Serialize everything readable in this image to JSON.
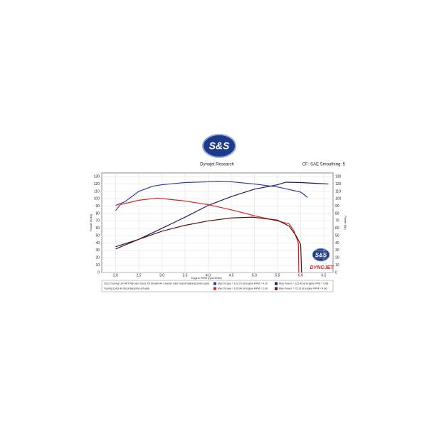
{
  "chart_data": {
    "type": "line",
    "title": "Dynojet Research",
    "subtitle": "CF: SAE Smoothing: 5",
    "logo": "S&S",
    "brand": "DYNOJET",
    "xlabel": "Engine RPM (rpm/1000)",
    "ylabel": "Torque (ft-lbs)",
    "y2label": "Power (hp)",
    "xlim": [
      1.7,
      6.7
    ],
    "xticks": [
      {
        "value": 2,
        "label": "2.0"
      },
      2.5,
      {
        "value": 3,
        "label": "3.0"
      },
      3.5,
      {
        "value": 4,
        "label": "4.0"
      },
      4.5,
      {
        "value": 5,
        "label": "5.0"
      },
      5.5,
      {
        "value": 6,
        "label": "6.0"
      },
      6.5
    ],
    "ylim": [
      0,
      135
    ],
    "yticks": [
      0,
      10,
      20,
      30,
      40,
      50,
      60,
      70,
      80,
      90,
      100,
      110,
      120,
      130
    ],
    "y2lim": [
      0,
      135
    ],
    "y2ticks": [
      0,
      10,
      20,
      30,
      40,
      50,
      60,
      70,
      80,
      90,
      100,
      110,
      120,
      130
    ],
    "grid": true,
    "runs": [
      {
        "name": "2022 Touring 114 HPT496 cam Stock TB  Stealth Air Cleaner S&S Grand National 2into1.wp8",
        "torque": {
          "label": "Max Torque = 123.79 at Engine RPM = 4.20",
          "color": "#2b3c9e",
          "x": [
            2.0,
            2.2,
            2.5,
            2.8,
            3.0,
            3.5,
            4.0,
            4.2,
            4.5,
            5.0,
            5.5,
            6.0,
            6.15
          ],
          "values": [
            91,
            96,
            110,
            117,
            119,
            122,
            123,
            123.79,
            123,
            120,
            116,
            109,
            102
          ]
        },
        "power": {
          "label": "Max Power = 122.49 at Engine RPM = 5.68",
          "color": "#1b1b66",
          "axis": "y2",
          "x": [
            2.0,
            2.5,
            3.0,
            3.5,
            4.0,
            4.5,
            5.0,
            5.5,
            5.68,
            6.0,
            6.3,
            6.6
          ],
          "values": [
            35,
            45,
            60,
            75,
            91,
            103,
            113,
            119,
            122.49,
            122,
            121,
            120
          ]
        }
      },
      {
        "name": "Touring 114ci All Stock Baseline.drf.wp8",
        "torque": {
          "label": "Max Torque = 100.94 at Engine RPM = 2.90",
          "color": "#d42222",
          "x": [
            2.0,
            2.1,
            2.5,
            2.9,
            3.5,
            4.0,
            4.5,
            5.0,
            5.5,
            5.75,
            5.85,
            5.95,
            5.96
          ],
          "values": [
            84,
            92,
            98,
            100.94,
            97,
            92,
            85,
            77,
            70,
            66,
            57,
            40,
            0
          ]
        },
        "power": {
          "label": "Max Power = 75.10 at Engine RPM = 4.96",
          "color": "#5e1010",
          "axis": "y2",
          "x": [
            2.0,
            2.5,
            3.0,
            3.5,
            4.0,
            4.5,
            4.96,
            5.5,
            5.75,
            5.9,
            6.0,
            6.02
          ],
          "values": [
            32,
            45,
            56,
            64,
            70,
            74,
            75.1,
            71,
            63,
            50,
            38,
            0
          ]
        }
      }
    ]
  }
}
